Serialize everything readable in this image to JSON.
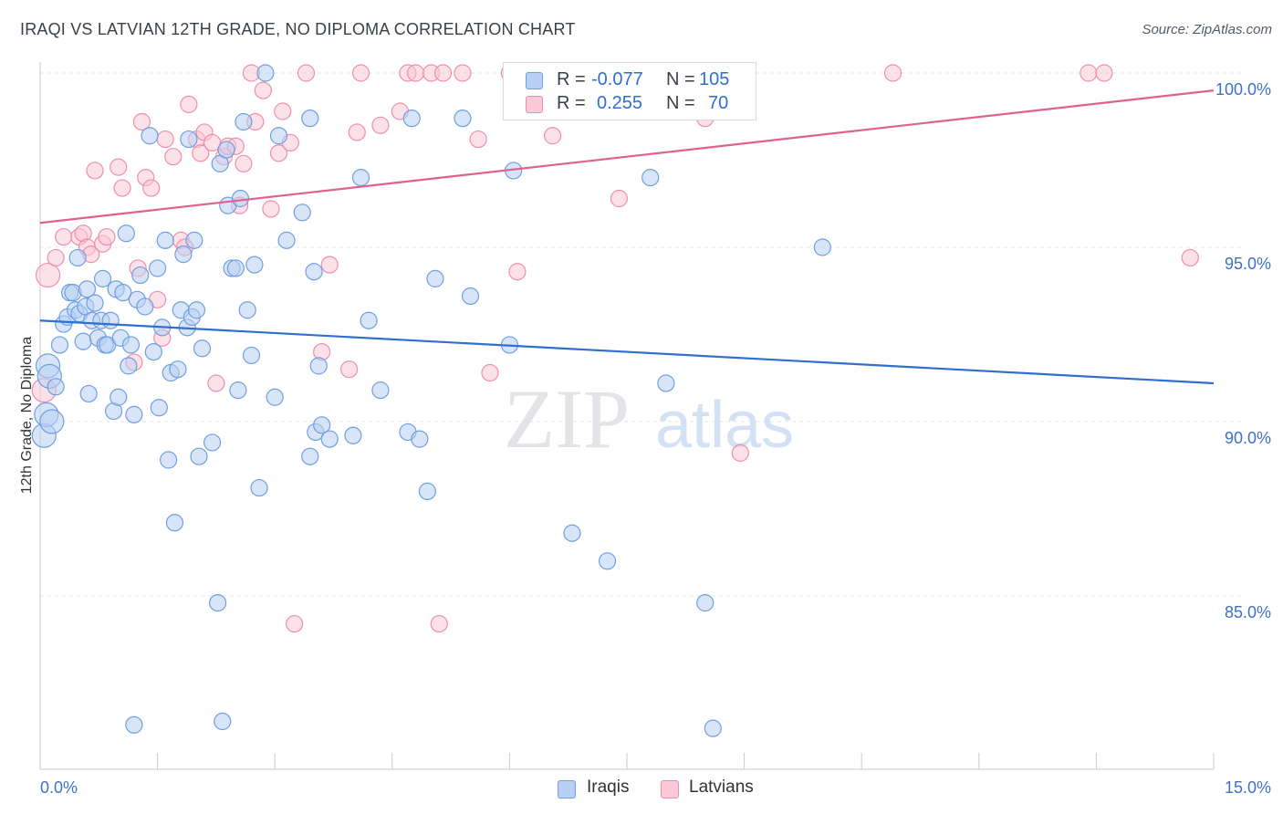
{
  "title": "IRAQI VS LATVIAN 12TH GRADE, NO DIPLOMA CORRELATION CHART",
  "source": "Source: ZipAtlas.com",
  "watermark": {
    "zip": "ZIP",
    "atlas": "atlas"
  },
  "legend": {
    "r_label": "R =",
    "n_label": "N =",
    "series": [
      {
        "name": "Iraqis",
        "r": "-0.077",
        "n": "105",
        "fill": "#b8d0f3",
        "stroke": "#6f9fe0"
      },
      {
        "name": "Latvians",
        "r": "0.255",
        "n": "70",
        "fill": "#fbc9d7",
        "stroke": "#ee8faa"
      }
    ]
  },
  "chart_data": {
    "type": "scatter",
    "title": "IRAQI VS LATVIAN 12TH GRADE, NO DIPLOMA CORRELATION CHART",
    "ylabel": "12th Grade, No Diploma",
    "xlabel": "",
    "xlim": [
      0,
      15
    ],
    "ylim": [
      80.3,
      100.8
    ],
    "x_tick_labels": [
      "0.0%",
      "15.0%"
    ],
    "y_tick_labels": [
      "100.0%",
      "95.0%",
      "90.0%",
      "85.0%"
    ],
    "y_ticks": [
      100,
      95,
      90,
      85
    ],
    "grid": true,
    "series": [
      {
        "name": "Iraqis",
        "color": "#6f9fe0",
        "line_color": "#2e6fcf",
        "trend": {
          "x": [
            0,
            15
          ],
          "y": [
            92.9,
            91.1
          ]
        },
        "points": [
          [
            0.05,
            89.6
          ],
          [
            0.08,
            90.2
          ],
          [
            0.1,
            91.6
          ],
          [
            0.12,
            91.3
          ],
          [
            0.15,
            90.0
          ],
          [
            0.2,
            91.0
          ],
          [
            0.25,
            92.2
          ],
          [
            0.3,
            92.8
          ],
          [
            0.35,
            93.0
          ],
          [
            0.38,
            93.7
          ],
          [
            0.42,
            93.7
          ],
          [
            0.45,
            93.2
          ],
          [
            0.48,
            94.7
          ],
          [
            0.5,
            93.1
          ],
          [
            0.55,
            92.3
          ],
          [
            0.58,
            93.3
          ],
          [
            0.6,
            93.8
          ],
          [
            0.62,
            90.8
          ],
          [
            0.66,
            92.9
          ],
          [
            0.7,
            93.4
          ],
          [
            0.74,
            92.4
          ],
          [
            0.78,
            92.9
          ],
          [
            0.8,
            94.1
          ],
          [
            0.83,
            92.2
          ],
          [
            0.86,
            92.2
          ],
          [
            0.9,
            92.9
          ],
          [
            0.94,
            90.3
          ],
          [
            0.97,
            93.8
          ],
          [
            1.0,
            90.7
          ],
          [
            1.03,
            92.4
          ],
          [
            1.06,
            93.7
          ],
          [
            1.1,
            95.4
          ],
          [
            1.13,
            91.6
          ],
          [
            1.16,
            92.2
          ],
          [
            1.2,
            90.2
          ],
          [
            1.24,
            93.5
          ],
          [
            1.28,
            94.2
          ],
          [
            1.34,
            93.3
          ],
          [
            1.4,
            98.2
          ],
          [
            1.45,
            92.0
          ],
          [
            1.5,
            94.4
          ],
          [
            1.52,
            90.4
          ],
          [
            1.56,
            92.7
          ],
          [
            1.6,
            95.2
          ],
          [
            1.64,
            88.9
          ],
          [
            1.67,
            91.4
          ],
          [
            1.72,
            87.1
          ],
          [
            1.76,
            91.5
          ],
          [
            1.8,
            93.2
          ],
          [
            1.83,
            94.8
          ],
          [
            1.88,
            92.7
          ],
          [
            1.9,
            98.1
          ],
          [
            1.94,
            93.0
          ],
          [
            1.97,
            95.2
          ],
          [
            2.0,
            93.2
          ],
          [
            2.03,
            89.0
          ],
          [
            2.07,
            92.1
          ],
          [
            2.2,
            89.4
          ],
          [
            2.27,
            84.8
          ],
          [
            2.3,
            97.4
          ],
          [
            2.33,
            81.4
          ],
          [
            2.38,
            97.8
          ],
          [
            2.4,
            96.2
          ],
          [
            2.45,
            94.4
          ],
          [
            2.5,
            94.4
          ],
          [
            2.53,
            90.9
          ],
          [
            2.56,
            96.4
          ],
          [
            2.6,
            98.6
          ],
          [
            2.65,
            93.2
          ],
          [
            2.7,
            91.9
          ],
          [
            2.74,
            94.5
          ],
          [
            2.8,
            88.1
          ],
          [
            2.88,
            100.0
          ],
          [
            3.0,
            90.7
          ],
          [
            3.05,
            98.2
          ],
          [
            3.15,
            95.2
          ],
          [
            3.35,
            96.0
          ],
          [
            3.45,
            98.7
          ],
          [
            3.5,
            94.3
          ],
          [
            3.52,
            89.7
          ],
          [
            3.56,
            91.6
          ],
          [
            3.6,
            89.9
          ],
          [
            3.7,
            89.5
          ],
          [
            3.45,
            89.0
          ],
          [
            4.0,
            89.6
          ],
          [
            4.1,
            97.0
          ],
          [
            4.2,
            92.9
          ],
          [
            4.35,
            90.9
          ],
          [
            4.7,
            89.7
          ],
          [
            4.75,
            98.7
          ],
          [
            4.85,
            89.5
          ],
          [
            4.95,
            88.0
          ],
          [
            5.05,
            94.1
          ],
          [
            5.4,
            98.7
          ],
          [
            5.5,
            93.6
          ],
          [
            6.0,
            92.2
          ],
          [
            6.05,
            97.2
          ],
          [
            6.8,
            86.8
          ],
          [
            7.25,
            86.0
          ],
          [
            7.8,
            97.0
          ],
          [
            8.0,
            91.1
          ],
          [
            8.5,
            84.8
          ],
          [
            8.6,
            81.2
          ],
          [
            10.0,
            95.0
          ],
          [
            1.2,
            81.3
          ]
        ]
      },
      {
        "name": "Latvians",
        "color": "#ee8faa",
        "line_color": "#e0618d",
        "trend": {
          "x": [
            0,
            15
          ],
          "y": [
            95.7,
            99.5
          ]
        },
        "points": [
          [
            0.05,
            90.9
          ],
          [
            0.1,
            94.2
          ],
          [
            0.2,
            94.7
          ],
          [
            0.3,
            95.3
          ],
          [
            0.5,
            95.3
          ],
          [
            0.55,
            95.4
          ],
          [
            0.6,
            95.0
          ],
          [
            0.65,
            94.8
          ],
          [
            0.7,
            97.2
          ],
          [
            0.8,
            95.1
          ],
          [
            0.85,
            95.3
          ],
          [
            1.0,
            97.3
          ],
          [
            1.05,
            96.7
          ],
          [
            1.2,
            91.7
          ],
          [
            1.25,
            94.4
          ],
          [
            1.3,
            98.6
          ],
          [
            1.35,
            97.0
          ],
          [
            1.42,
            96.7
          ],
          [
            1.5,
            93.5
          ],
          [
            1.56,
            92.4
          ],
          [
            1.6,
            98.1
          ],
          [
            1.7,
            97.6
          ],
          [
            1.8,
            95.2
          ],
          [
            1.85,
            95.0
          ],
          [
            1.9,
            99.1
          ],
          [
            2.0,
            98.1
          ],
          [
            2.05,
            97.7
          ],
          [
            2.1,
            98.3
          ],
          [
            2.2,
            98.0
          ],
          [
            2.25,
            91.1
          ],
          [
            2.35,
            97.6
          ],
          [
            2.4,
            97.9
          ],
          [
            2.5,
            97.9
          ],
          [
            2.55,
            96.2
          ],
          [
            2.6,
            97.4
          ],
          [
            2.7,
            100.0
          ],
          [
            2.75,
            98.6
          ],
          [
            2.85,
            99.5
          ],
          [
            2.95,
            96.1
          ],
          [
            3.05,
            97.7
          ],
          [
            3.1,
            98.9
          ],
          [
            3.2,
            98.0
          ],
          [
            3.4,
            100.0
          ],
          [
            3.6,
            92.0
          ],
          [
            3.7,
            94.5
          ],
          [
            3.95,
            91.5
          ],
          [
            4.05,
            98.3
          ],
          [
            4.1,
            100.0
          ],
          [
            4.35,
            98.5
          ],
          [
            4.6,
            98.9
          ],
          [
            4.7,
            100.0
          ],
          [
            4.8,
            100.0
          ],
          [
            5.0,
            100.0
          ],
          [
            5.15,
            100.0
          ],
          [
            5.1,
            84.2
          ],
          [
            5.4,
            100.0
          ],
          [
            5.6,
            98.1
          ],
          [
            5.75,
            91.4
          ],
          [
            6.0,
            100.0
          ],
          [
            6.1,
            94.3
          ],
          [
            6.3,
            100.0
          ],
          [
            6.55,
            98.2
          ],
          [
            7.4,
            96.4
          ],
          [
            8.5,
            98.7
          ],
          [
            8.95,
            89.1
          ],
          [
            10.9,
            100.0
          ],
          [
            13.4,
            100.0
          ],
          [
            13.6,
            100.0
          ],
          [
            14.7,
            94.7
          ],
          [
            3.25,
            84.2
          ]
        ]
      }
    ]
  }
}
